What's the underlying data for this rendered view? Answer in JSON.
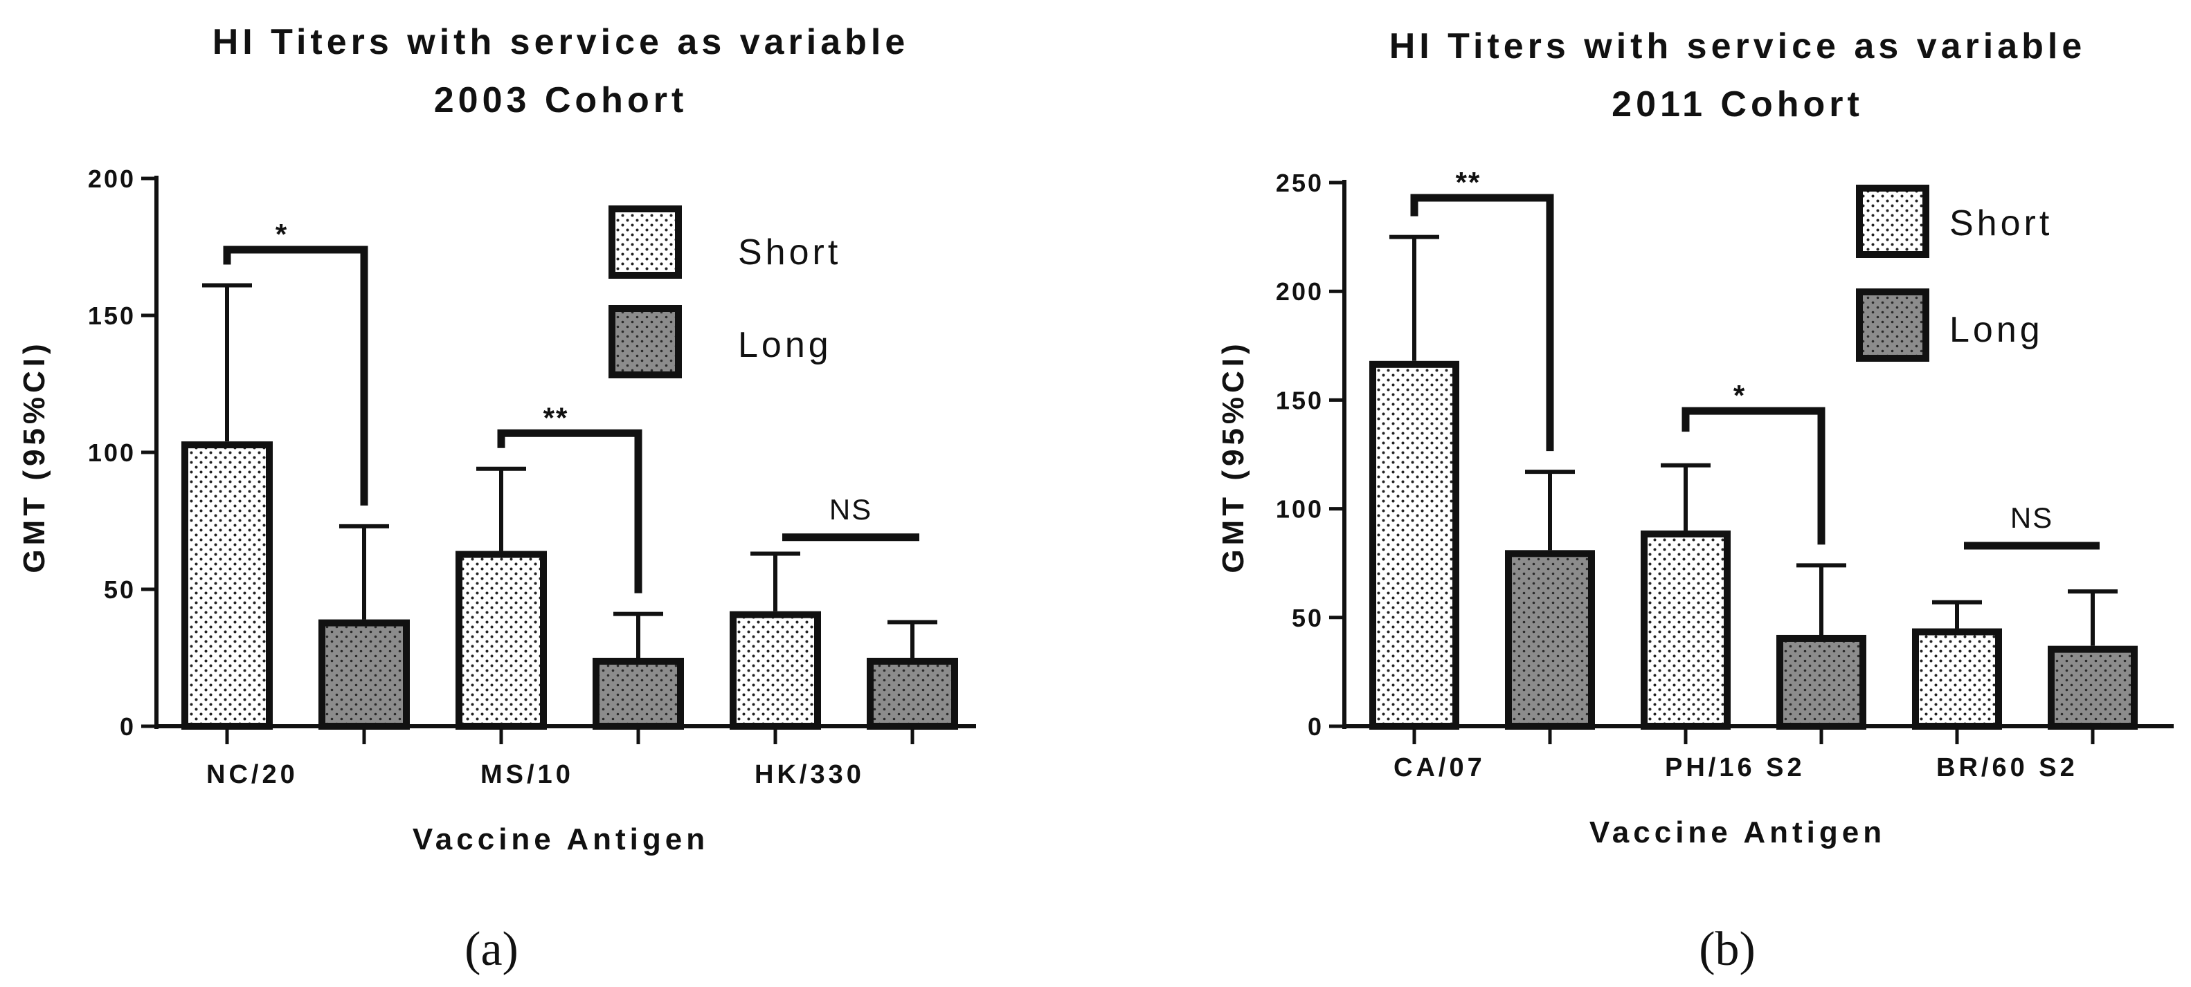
{
  "colors": {
    "short_fill": "#ffffff",
    "long_fill": "#8c8c8c",
    "stroke": "#111111",
    "dot": "#222222"
  },
  "chart_data": [
    {
      "type": "bar",
      "title": "HI Titers with service as variable",
      "subtitle": "2003 Cohort",
      "panel_label": "(a)",
      "xlabel": "Vaccine Antigen",
      "ylabel": "GMT (95%CI)",
      "ylim": [
        0,
        200
      ],
      "yticks": [
        0,
        50,
        100,
        150,
        200
      ],
      "categories": [
        "NC/20",
        "MS/10",
        "HK/330"
      ],
      "legend_position": "top-right",
      "series": [
        {
          "name": "Short",
          "values": [
            104,
            64,
            42
          ],
          "ci_upper": [
            161,
            94,
            63
          ]
        },
        {
          "name": "Long",
          "values": [
            39,
            25,
            25
          ],
          "ci_upper": [
            73,
            41,
            38
          ]
        }
      ],
      "annotations": [
        {
          "category": "NC/20",
          "label": "*",
          "bracket_y": 174
        },
        {
          "category": "MS/10",
          "label": "**",
          "bracket_y": 107
        },
        {
          "category": "HK/330",
          "label": "NS",
          "bracket_y": 69
        }
      ]
    },
    {
      "type": "bar",
      "title": "HI Titers with service as variable",
      "subtitle": "2011 Cohort",
      "panel_label": "(b)",
      "xlabel": "Vaccine Antigen",
      "ylabel": "GMT (95%CI)",
      "ylim": [
        0,
        250
      ],
      "yticks": [
        0,
        50,
        100,
        150,
        200,
        250
      ],
      "categories": [
        "CA/07",
        "PH/16 S2",
        "BR/60 S2"
      ],
      "legend_position": "top-right",
      "series": [
        {
          "name": "Short",
          "values": [
            168,
            90,
            45
          ],
          "ci_upper": [
            225,
            120,
            57
          ]
        },
        {
          "name": "Long",
          "values": [
            81,
            42,
            37
          ],
          "ci_upper": [
            117,
            74,
            62
          ]
        }
      ],
      "annotations": [
        {
          "category": "CA/07",
          "label": "**",
          "bracket_y": 243
        },
        {
          "category": "PH/16 S2",
          "label": "*",
          "bracket_y": 145
        },
        {
          "category": "BR/60 S2",
          "label": "NS",
          "bracket_y": 83
        }
      ]
    }
  ]
}
